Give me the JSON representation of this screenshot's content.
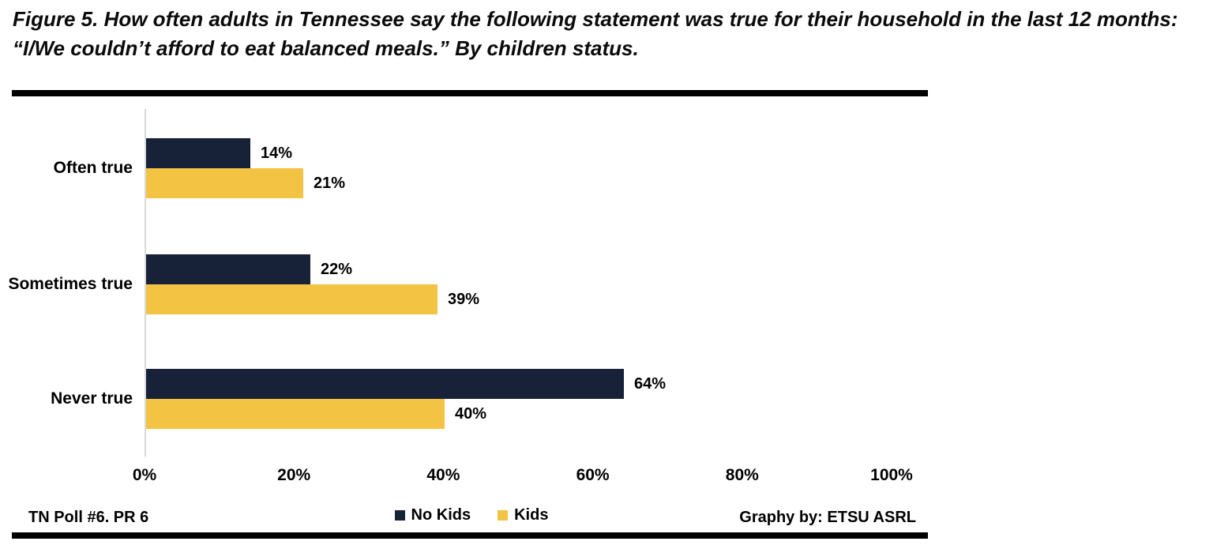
{
  "title": "Figure 5. How often adults in Tennessee say the following statement was true for their household in the last 12 months: “I/We couldn’t afford to eat balanced meals.” By children status.",
  "footer": {
    "left": "TN Poll #6. PR 6",
    "right": "Graphy by: ETSU ASRL"
  },
  "colors": {
    "no_kids_bar": "#172138",
    "kids_bar": "#f3c344",
    "axis_line": "#d9d9d9",
    "rule": "#000000",
    "text": "#000000"
  },
  "chart_data": {
    "type": "bar",
    "orientation": "horizontal",
    "title": "",
    "xlabel": "",
    "ylabel": "",
    "categories": [
      "Often true",
      "Sometimes true",
      "Never true"
    ],
    "series": [
      {
        "name": "No Kids",
        "color": "#172138",
        "values": [
          14,
          22,
          64
        ]
      },
      {
        "name": "Kids",
        "color": "#f3c344",
        "values": [
          21,
          39,
          40
        ]
      }
    ],
    "data_labels": true,
    "value_suffix": "%",
    "x_axis": {
      "min": 0,
      "max": 100,
      "tick_step": 20,
      "ticks": [
        0,
        20,
        40,
        60,
        80,
        100
      ],
      "tick_labels": [
        "0%",
        "20%",
        "40%",
        "60%",
        "80%",
        "100%"
      ]
    },
    "grid": false,
    "legend_position": "bottom-center"
  }
}
